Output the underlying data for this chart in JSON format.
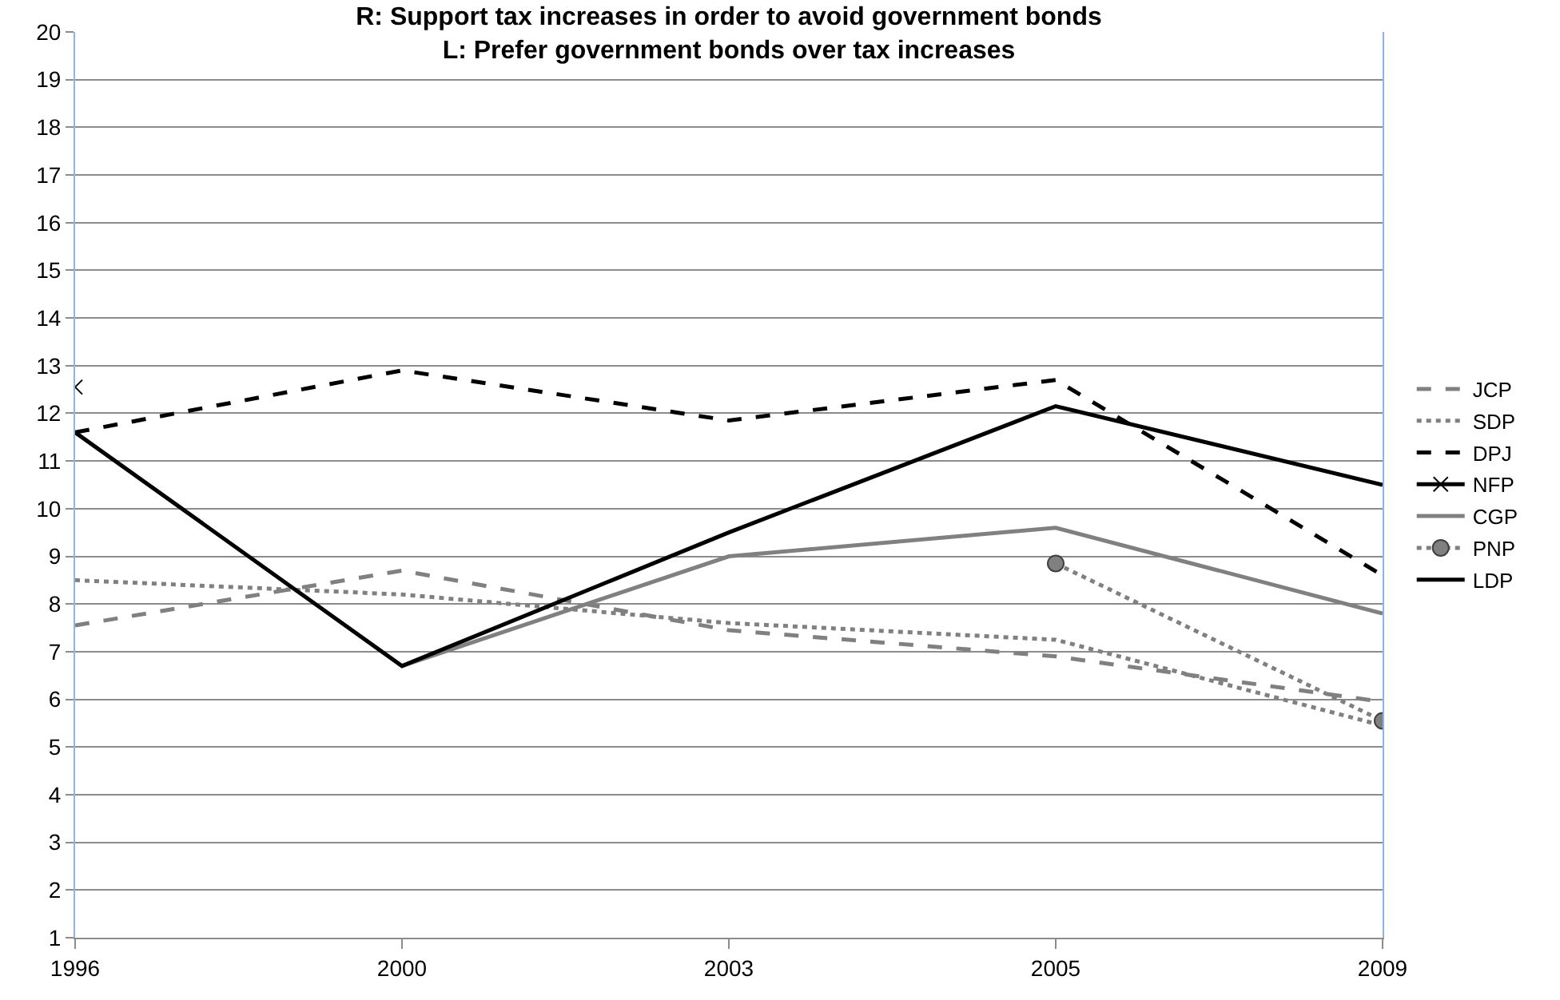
{
  "chart_data": {
    "type": "line",
    "title": "R: Support tax increases in order to avoid government bonds\nL: Prefer government bonds over tax increases",
    "categories": [
      "1996",
      "2000",
      "2003",
      "2005",
      "2009"
    ],
    "ylim": [
      1,
      20
    ],
    "yticks": [
      1,
      2,
      3,
      4,
      5,
      6,
      7,
      8,
      9,
      10,
      11,
      12,
      13,
      14,
      15,
      16,
      17,
      18,
      19,
      20
    ],
    "grid": "y",
    "legend": "right",
    "series": [
      {
        "name": "JCP",
        "color": "#808080",
        "line_style": "dashed",
        "marker": "none",
        "values": [
          7.55,
          8.7,
          7.45,
          6.9,
          5.95
        ]
      },
      {
        "name": "SDP",
        "color": "#808080",
        "line_style": "dotted",
        "marker": "none",
        "values": [
          8.5,
          8.2,
          7.6,
          7.25,
          5.45
        ]
      },
      {
        "name": "DPJ",
        "color": "#000000",
        "line_style": "dashed",
        "marker": "none",
        "values": [
          11.6,
          12.9,
          11.85,
          12.7,
          8.6
        ]
      },
      {
        "name": "NFP",
        "color": "#000000",
        "line_style": "solid",
        "marker": "cross",
        "values": [
          12.55,
          null,
          null,
          null,
          null
        ]
      },
      {
        "name": "CGP",
        "color": "#808080",
        "line_style": "solid",
        "marker": "none",
        "values": [
          null,
          6.7,
          9.0,
          9.6,
          7.8
        ]
      },
      {
        "name": "PNP",
        "color": "#808080",
        "line_style": "dotted",
        "marker": "circle",
        "values": [
          null,
          null,
          null,
          8.85,
          5.55
        ]
      },
      {
        "name": "LDP",
        "color": "#000000",
        "line_style": "solid",
        "marker": "none",
        "values": [
          11.6,
          6.7,
          9.5,
          12.15,
          10.5
        ]
      }
    ]
  }
}
